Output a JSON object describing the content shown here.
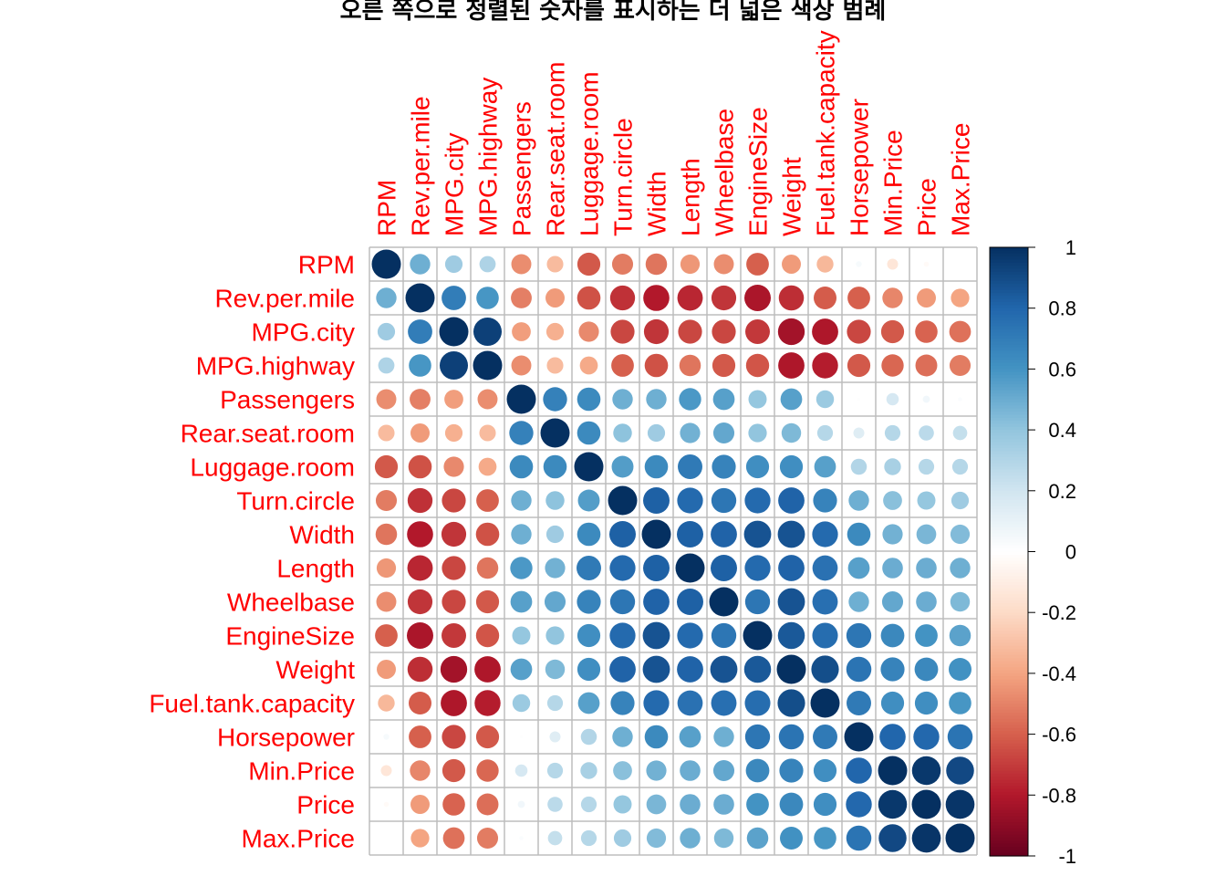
{
  "chart_data": {
    "type": "heatmap",
    "title": "오른 쪽으로 정렬된 숫자를 표시하는 더 넓은 색상 범례",
    "variables": [
      "RPM",
      "Rev.per.mile",
      "MPG.city",
      "MPG.highway",
      "Passengers",
      "Rear.seat.room",
      "Luggage.room",
      "Turn.circle",
      "Width",
      "Length",
      "Wheelbase",
      "EngineSize",
      "Weight",
      "Fuel.tank.capacity",
      "Horsepower",
      "Min.Price",
      "Price",
      "Max.Price"
    ],
    "matrix": [
      [
        1.0,
        0.49,
        0.36,
        0.31,
        -0.47,
        -0.32,
        -0.62,
        -0.52,
        -0.54,
        -0.44,
        -0.47,
        -0.6,
        -0.43,
        -0.33,
        0.04,
        -0.14,
        -0.03,
        0.0
      ],
      [
        0.49,
        1.0,
        0.7,
        0.59,
        -0.51,
        -0.43,
        -0.64,
        -0.73,
        -0.8,
        -0.76,
        -0.72,
        -0.82,
        -0.74,
        -0.61,
        -0.6,
        -0.49,
        -0.43,
        -0.4
      ],
      [
        0.36,
        0.7,
        1.0,
        0.94,
        -0.42,
        -0.36,
        -0.48,
        -0.67,
        -0.72,
        -0.67,
        -0.67,
        -0.71,
        -0.84,
        -0.81,
        -0.67,
        -0.62,
        -0.59,
        -0.55
      ],
      [
        0.31,
        0.59,
        0.94,
        1.0,
        -0.47,
        -0.32,
        -0.38,
        -0.6,
        -0.64,
        -0.54,
        -0.62,
        -0.63,
        -0.81,
        -0.79,
        -0.62,
        -0.58,
        -0.56,
        -0.52
      ],
      [
        -0.47,
        -0.51,
        -0.42,
        -0.47,
        1.0,
        0.68,
        0.64,
        0.49,
        0.49,
        0.58,
        0.55,
        0.39,
        0.55,
        0.37,
        0.01,
        0.18,
        0.06,
        0.02
      ],
      [
        -0.32,
        -0.43,
        -0.36,
        -0.32,
        0.68,
        1.0,
        0.64,
        0.41,
        0.36,
        0.48,
        0.52,
        0.4,
        0.45,
        0.29,
        0.14,
        0.29,
        0.27,
        0.24
      ],
      [
        -0.62,
        -0.64,
        -0.48,
        -0.38,
        0.64,
        0.64,
        1.0,
        0.56,
        0.64,
        0.71,
        0.67,
        0.62,
        0.62,
        0.55,
        0.3,
        0.33,
        0.29,
        0.29
      ],
      [
        -0.52,
        -0.73,
        -0.67,
        -0.6,
        0.49,
        0.41,
        0.56,
        1.0,
        0.82,
        0.78,
        0.73,
        0.78,
        0.81,
        0.67,
        0.49,
        0.42,
        0.39,
        0.36
      ],
      [
        -0.54,
        -0.8,
        -0.72,
        -0.64,
        0.49,
        0.36,
        0.64,
        0.82,
        1.0,
        0.82,
        0.81,
        0.87,
        0.87,
        0.78,
        0.64,
        0.48,
        0.46,
        0.44
      ],
      [
        -0.44,
        -0.76,
        -0.67,
        -0.54,
        0.58,
        0.48,
        0.71,
        0.78,
        0.82,
        1.0,
        0.82,
        0.78,
        0.81,
        0.75,
        0.55,
        0.5,
        0.5,
        0.49
      ],
      [
        -0.47,
        -0.72,
        -0.67,
        -0.62,
        0.55,
        0.52,
        0.67,
        0.73,
        0.81,
        0.82,
        1.0,
        0.73,
        0.87,
        0.76,
        0.49,
        0.52,
        0.5,
        0.45
      ],
      [
        -0.6,
        -0.82,
        -0.71,
        -0.63,
        0.39,
        0.4,
        0.62,
        0.78,
        0.87,
        0.78,
        0.73,
        1.0,
        0.85,
        0.77,
        0.73,
        0.65,
        0.6,
        0.54
      ],
      [
        -0.43,
        -0.74,
        -0.84,
        -0.81,
        0.55,
        0.45,
        0.62,
        0.81,
        0.87,
        0.81,
        0.87,
        0.85,
        1.0,
        0.89,
        0.74,
        0.67,
        0.65,
        0.61
      ],
      [
        -0.33,
        -0.61,
        -0.81,
        -0.79,
        0.37,
        0.29,
        0.55,
        0.67,
        0.78,
        0.75,
        0.76,
        0.77,
        0.89,
        1.0,
        0.71,
        0.62,
        0.62,
        0.59
      ],
      [
        0.04,
        -0.6,
        -0.67,
        -0.62,
        0.01,
        0.14,
        0.3,
        0.49,
        0.64,
        0.55,
        0.49,
        0.73,
        0.74,
        0.71,
        1.0,
        0.8,
        0.79,
        0.74
      ],
      [
        -0.14,
        -0.49,
        -0.62,
        -0.58,
        0.18,
        0.29,
        0.33,
        0.42,
        0.48,
        0.5,
        0.52,
        0.65,
        0.67,
        0.62,
        0.8,
        1.0,
        0.97,
        0.91
      ],
      [
        -0.03,
        -0.43,
        -0.59,
        -0.56,
        0.06,
        0.27,
        0.29,
        0.39,
        0.46,
        0.5,
        0.5,
        0.6,
        0.65,
        0.62,
        0.79,
        0.97,
        1.0,
        0.98
      ],
      [
        0.0,
        -0.4,
        -0.55,
        -0.52,
        0.02,
        0.24,
        0.29,
        0.36,
        0.44,
        0.49,
        0.45,
        0.54,
        0.61,
        0.59,
        0.74,
        0.91,
        0.98,
        1.0
      ]
    ],
    "legend": {
      "placement": "right",
      "range": [
        -1,
        1
      ],
      "ticks": [
        "1",
        "0.8",
        "0.6",
        "0.4",
        "0.2",
        "0",
        "-0.2",
        "-0.4",
        "-0.6",
        "-0.8",
        "-1"
      ]
    },
    "colors": [
      "#67001F",
      "#B2182B",
      "#D6604D",
      "#F4A582",
      "#FDDBC7",
      "#FFFFFF",
      "#D1E5F0",
      "#92C5DE",
      "#4393C3",
      "#2166AC",
      "#053061"
    ],
    "label_color": "#ff0000"
  }
}
